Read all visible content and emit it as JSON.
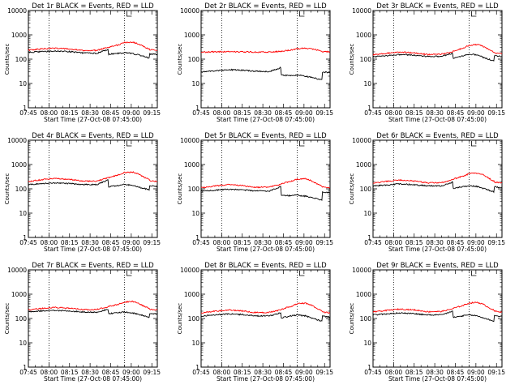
{
  "figure": {
    "x_tick_labels": [
      "07:45",
      "08:00",
      "08:15",
      "08:30",
      "08:45",
      "09:00",
      "09:15"
    ],
    "y_tick_labels": [
      "1",
      "10",
      "100",
      "1000",
      "10000"
    ],
    "colors": {
      "events": "#000000",
      "lld": "#ff0000",
      "axis": "#000000",
      "background": "#ffffff"
    }
  },
  "chart_data": [
    {
      "type": "line",
      "title": "Det 1r BLACK = Events, RED = LLD",
      "xlabel": "Start Time (27-Oct-08 07:45:00)",
      "ylabel": "Counts/sec",
      "y_scale": "log",
      "ylim": [
        1,
        10000
      ],
      "xlim_minutes": [
        0,
        94
      ],
      "x_minutes": [
        0,
        10,
        20,
        30,
        40,
        50,
        58,
        58.5,
        66,
        70,
        76,
        80,
        84,
        88,
        88.5,
        94
      ],
      "series": [
        {
          "name": "Events",
          "color": "#000000",
          "values": [
            190,
            205,
            215,
            205,
            180,
            175,
            250,
            160,
            175,
            185,
            170,
            150,
            130,
            110,
            165,
            155
          ]
        },
        {
          "name": "LLD",
          "color": "#ff0000",
          "values": [
            235,
            265,
            285,
            260,
            225,
            230,
            310,
            315,
            390,
            480,
            500,
            430,
            330,
            260,
            250,
            230
          ]
        }
      ],
      "markers": [
        15,
        70
      ]
    },
    {
      "type": "line",
      "title": "Det 2r BLACK = Events, RED = LLD",
      "xlabel": "Start Time (27-Oct-08 07:45:00)",
      "ylabel": "Counts/sec",
      "y_scale": "log",
      "ylim": [
        1,
        10000
      ],
      "xlim_minutes": [
        0,
        94
      ],
      "x_minutes": [
        0,
        10,
        20,
        30,
        40,
        50,
        58,
        58.5,
        66,
        70,
        76,
        80,
        84,
        88,
        88.5,
        94
      ],
      "series": [
        {
          "name": "Events",
          "color": "#000000",
          "values": [
            30,
            33,
            37,
            35,
            32,
            31,
            45,
            22,
            21,
            22,
            20,
            18,
            16,
            14,
            30,
            28
          ]
        },
        {
          "name": "LLD",
          "color": "#ff0000",
          "values": [
            195,
            200,
            205,
            200,
            195,
            195,
            210,
            215,
            240,
            265,
            285,
            270,
            240,
            215,
            205,
            200
          ]
        }
      ],
      "markers": [
        15,
        70
      ]
    },
    {
      "type": "line",
      "title": "Det 3r BLACK = Events, RED = LLD",
      "xlabel": "Start Time (27-Oct-08 07:45:00)",
      "ylabel": "Counts/sec",
      "y_scale": "log",
      "ylim": [
        1,
        10000
      ],
      "xlim_minutes": [
        0,
        94
      ],
      "x_minutes": [
        0,
        10,
        20,
        30,
        40,
        50,
        58,
        58.5,
        66,
        70,
        76,
        80,
        84,
        88,
        88.5,
        94
      ],
      "series": [
        {
          "name": "Events",
          "color": "#000000",
          "values": [
            125,
            140,
            155,
            145,
            130,
            130,
            175,
            110,
            140,
            160,
            150,
            120,
            100,
            85,
            140,
            130
          ]
        },
        {
          "name": "LLD",
          "color": "#ff0000",
          "values": [
            150,
            175,
            195,
            180,
            155,
            160,
            200,
            210,
            290,
            370,
            400,
            340,
            260,
            200,
            180,
            165
          ]
        }
      ],
      "markers": [
        15,
        70
      ]
    },
    {
      "type": "line",
      "title": "Det 4r BLACK = Events, RED = LLD",
      "xlabel": "Start Time (27-Oct-08 07:45:00)",
      "ylabel": "Counts/sec",
      "y_scale": "log",
      "ylim": [
        1,
        10000
      ],
      "xlim_minutes": [
        0,
        94
      ],
      "x_minutes": [
        0,
        10,
        20,
        30,
        40,
        50,
        58,
        58.5,
        66,
        70,
        76,
        80,
        84,
        88,
        88.5,
        94
      ],
      "series": [
        {
          "name": "Events",
          "color": "#000000",
          "values": [
            150,
            165,
            175,
            165,
            150,
            150,
            230,
            120,
            140,
            150,
            140,
            120,
            105,
            90,
            135,
            125
          ]
        },
        {
          "name": "LLD",
          "color": "#ff0000",
          "values": [
            200,
            240,
            270,
            245,
            205,
            210,
            280,
            290,
            380,
            470,
            490,
            410,
            310,
            240,
            220,
            200
          ]
        }
      ],
      "markers": [
        15,
        70
      ]
    },
    {
      "type": "line",
      "title": "Det 5r BLACK = Events, RED = LLD",
      "xlabel": "Start Time (27-Oct-08 07:45:00)",
      "ylabel": "Counts/sec",
      "y_scale": "log",
      "ylim": [
        1,
        10000
      ],
      "xlim_minutes": [
        0,
        94
      ],
      "x_minutes": [
        0,
        10,
        20,
        30,
        40,
        50,
        58,
        58.5,
        66,
        70,
        76,
        80,
        84,
        88,
        88.5,
        94
      ],
      "series": [
        {
          "name": "Events",
          "color": "#000000",
          "values": [
            80,
            88,
            95,
            90,
            82,
            82,
            120,
            55,
            52,
            55,
            50,
            45,
            40,
            35,
            75,
            70
          ]
        },
        {
          "name": "LLD",
          "color": "#ff0000",
          "values": [
            110,
            130,
            150,
            135,
            115,
            120,
            150,
            160,
            210,
            250,
            260,
            220,
            170,
            130,
            120,
            110
          ]
        }
      ],
      "markers": [
        15,
        70
      ]
    },
    {
      "type": "line",
      "title": "Det 6r BLACK = Events, RED = LLD",
      "xlabel": "Start Time (27-Oct-08 07:45:00)",
      "ylabel": "Counts/sec",
      "y_scale": "log",
      "ylim": [
        1,
        10000
      ],
      "xlim_minutes": [
        0,
        94
      ],
      "x_minutes": [
        0,
        10,
        20,
        30,
        40,
        50,
        58,
        58.5,
        66,
        70,
        76,
        80,
        84,
        88,
        88.5,
        94
      ],
      "series": [
        {
          "name": "Events",
          "color": "#000000",
          "values": [
            130,
            145,
            160,
            148,
            132,
            132,
            190,
            105,
            125,
            135,
            125,
            105,
            90,
            75,
            120,
            110
          ]
        },
        {
          "name": "LLD",
          "color": "#ff0000",
          "values": [
            170,
            205,
            230,
            210,
            175,
            180,
            240,
            250,
            340,
            420,
            450,
            380,
            280,
            210,
            190,
            175
          ]
        }
      ],
      "markers": [
        15,
        70
      ]
    },
    {
      "type": "line",
      "title": "Det 7r BLACK = Events, RED = LLD",
      "xlabel": "Start Time (27-Oct-08 07:45:00)",
      "ylabel": "Counts/sec",
      "y_scale": "log",
      "ylim": [
        1,
        10000
      ],
      "xlim_minutes": [
        0,
        94
      ],
      "x_minutes": [
        0,
        10,
        20,
        30,
        40,
        50,
        58,
        58.5,
        66,
        70,
        76,
        80,
        84,
        88,
        88.5,
        94
      ],
      "series": [
        {
          "name": "Events",
          "color": "#000000",
          "values": [
            190,
            205,
            215,
            205,
            185,
            180,
            240,
            160,
            175,
            185,
            170,
            150,
            130,
            110,
            165,
            155
          ]
        },
        {
          "name": "LLD",
          "color": "#ff0000",
          "values": [
            230,
            260,
            285,
            265,
            230,
            235,
            300,
            310,
            390,
            470,
            500,
            430,
            330,
            260,
            240,
            225
          ]
        }
      ],
      "markers": [
        15,
        70
      ]
    },
    {
      "type": "line",
      "title": "Det 8r BLACK = Events, RED = LLD",
      "xlabel": "Start Time (27-Oct-08 07:45:00)",
      "ylabel": "Counts/sec",
      "y_scale": "log",
      "ylim": [
        1,
        10000
      ],
      "xlim_minutes": [
        0,
        94
      ],
      "x_minutes": [
        0,
        10,
        20,
        30,
        40,
        50,
        58,
        58.5,
        66,
        70,
        76,
        80,
        84,
        88,
        88.5,
        94
      ],
      "series": [
        {
          "name": "Events",
          "color": "#000000",
          "values": [
            125,
            140,
            155,
            145,
            130,
            128,
            175,
            105,
            130,
            140,
            128,
            108,
            92,
            78,
            125,
            115
          ]
        },
        {
          "name": "LLD",
          "color": "#ff0000",
          "values": [
            170,
            200,
            225,
            205,
            175,
            178,
            230,
            240,
            320,
            400,
            430,
            360,
            270,
            205,
            185,
            170
          ]
        }
      ],
      "markers": [
        15,
        70
      ]
    },
    {
      "type": "line",
      "title": "Det 9r BLACK = Events, RED = LLD",
      "xlabel": "Start Time (27-Oct-08 07:45:00)",
      "ylabel": "Counts/sec",
      "y_scale": "log",
      "ylim": [
        1,
        10000
      ],
      "xlim_minutes": [
        0,
        94
      ],
      "x_minutes": [
        0,
        10,
        20,
        30,
        40,
        50,
        58,
        58.5,
        66,
        70,
        76,
        80,
        84,
        88,
        88.5,
        94
      ],
      "series": [
        {
          "name": "Events",
          "color": "#000000",
          "values": [
            140,
            155,
            170,
            158,
            140,
            140,
            200,
            110,
            130,
            140,
            128,
            108,
            92,
            78,
            130,
            120
          ]
        },
        {
          "name": "LLD",
          "color": "#ff0000",
          "values": [
            185,
            215,
            245,
            225,
            190,
            195,
            250,
            260,
            350,
            430,
            460,
            390,
            290,
            220,
            200,
            185
          ]
        }
      ],
      "markers": [
        15,
        70
      ]
    }
  ]
}
